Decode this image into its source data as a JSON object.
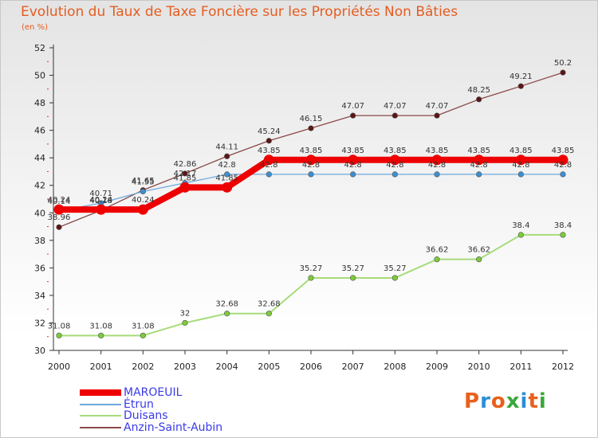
{
  "header": {
    "title": "Evolution du Taux de Taxe Foncière sur les Propriétés Non Bâties",
    "unit": "(en %)"
  },
  "logo": {
    "text": "Proxiti",
    "colors": [
      "#e8601c",
      "#2a8fd6",
      "#e8601c",
      "#3aa83a",
      "#2a8fd6",
      "#e8601c",
      "#3aa83a"
    ]
  },
  "chart_data": {
    "type": "line",
    "title": "Evolution du Taux de Taxe Foncière sur les Propriétés Non Bâties",
    "ylabel": "(en %)",
    "xlabel": "",
    "x": [
      "2000",
      "2001",
      "2002",
      "2003",
      "2004",
      "2005",
      "2006",
      "2007",
      "2008",
      "2009",
      "2010",
      "2011",
      "2012"
    ],
    "ylim": [
      30,
      52
    ],
    "yticks": [
      30,
      32,
      34,
      36,
      38,
      40,
      42,
      44,
      46,
      48,
      50,
      52
    ],
    "grid": false,
    "legend_position": "bottom-left",
    "series": [
      {
        "name": "MAROEUIL",
        "color": "#ee0000",
        "values": [
          40.24,
          40.24,
          40.24,
          41.85,
          41.85,
          43.85,
          43.85,
          43.85,
          43.85,
          43.85,
          43.85,
          43.85,
          43.85
        ],
        "labels": [
          "40.24",
          "40.24",
          "40.24",
          "41.85",
          "41.85",
          "43.85",
          "43.85",
          "43.85",
          "43.85",
          "43.85",
          "43.85",
          "43.85",
          "43.85"
        ]
      },
      {
        "name": "Étrun",
        "color": "#6fa8dc",
        "values": [
          40.14,
          40.71,
          41.55,
          42.17,
          42.8,
          42.8,
          42.8,
          42.8,
          42.8,
          42.8,
          42.8,
          42.8,
          42.8
        ],
        "labels": [
          "40.14",
          "40.71",
          "41.55",
          "42.17",
          "42.8",
          "42.8",
          "42.8",
          "42.8",
          "42.8",
          "42.8",
          "42.8",
          "42.8",
          "42.8"
        ]
      },
      {
        "name": "Duisans",
        "color": "#a6dc7a",
        "values": [
          31.08,
          31.08,
          31.08,
          32,
          32.68,
          32.68,
          35.27,
          35.27,
          35.27,
          36.62,
          36.62,
          38.4,
          38.4
        ],
        "labels": [
          "31.08",
          "31.08",
          "31.08",
          "32",
          "32.68",
          "32.68",
          "35.27",
          "35.27",
          "35.27",
          "36.62",
          "36.62",
          "38.4",
          "38.4"
        ]
      },
      {
        "name": "Anzin-Saint-Aubin",
        "color": "#8b4a4a",
        "values": [
          38.96,
          40.18,
          41.65,
          42.86,
          44.11,
          45.24,
          46.15,
          47.07,
          47.07,
          47.07,
          48.25,
          49.21,
          50.2
        ],
        "labels": [
          "38.96",
          "40.18",
          "41.65",
          "42.86",
          "44.11",
          "45.24",
          "46.15",
          "47.07",
          "47.07",
          "47.07",
          "48.25",
          "49.21",
          "50.2"
        ]
      }
    ]
  }
}
